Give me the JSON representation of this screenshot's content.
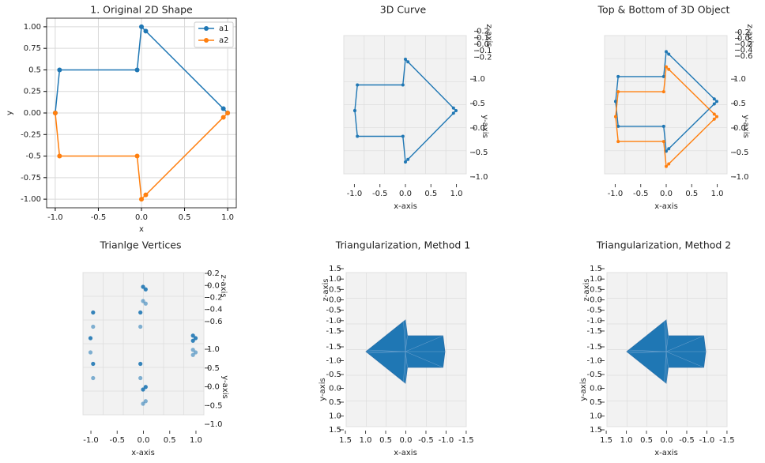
{
  "chart_data": [
    {
      "type": "line",
      "title": "1. Original 2D Shape",
      "x_label": "x",
      "y_label": "y",
      "x": [
        -1,
        -0.95,
        -0.05,
        0,
        0.05,
        0.95,
        1
      ],
      "series": [
        {
          "name": "a1",
          "color": "#1f77b4",
          "values": [
            0,
            0.5,
            0.5,
            1,
            0.95,
            0.05,
            0
          ]
        },
        {
          "name": "a2",
          "color": "#ff7f0e",
          "values": [
            0,
            -0.5,
            -0.5,
            -1,
            -0.95,
            -0.05,
            0
          ]
        }
      ],
      "xlim": [
        -1.1,
        1.1
      ],
      "ylim": [
        -1.1,
        1.1
      ],
      "xticks": [
        {
          "value": -1,
          "label": "-1.0"
        },
        -0.5,
        {
          "value": 0,
          "label": "0.0"
        },
        0.5,
        {
          "value": 1,
          "label": "1.0"
        }
      ],
      "yticks": [
        {
          "value": -1,
          "label": "-1.00"
        },
        -0.75,
        -0.5,
        -0.25,
        {
          "value": 0,
          "label": "0.00"
        },
        0.25,
        0.5,
        0.75,
        {
          "value": 1,
          "label": "1.00"
        }
      ],
      "grid": true,
      "legend": "upper right"
    },
    {
      "type": "line3d",
      "title": "3D Curve",
      "x_label": "x-axis",
      "y_label": "y-axis",
      "z_label": "z-axis",
      "series": [
        {
          "color": "#1f77b4",
          "z": 0,
          "x": [
            -1,
            -0.95,
            -0.05,
            0,
            0.05,
            0.95,
            1,
            0.95,
            0.05,
            0,
            -0.05,
            -0.95,
            -1
          ],
          "y": [
            0,
            0.5,
            0.5,
            1,
            0.95,
            0.05,
            0,
            -0.05,
            -0.95,
            -1,
            -0.5,
            -0.5,
            0
          ]
        }
      ],
      "xlim": [
        -1.1,
        1.1
      ],
      "ylim": [
        -1.1,
        1.1
      ],
      "zlim": [
        -0.22,
        0.22
      ],
      "xticks": [
        {
          "value": -1,
          "label": "-1.0"
        },
        -0.5,
        {
          "value": 0,
          "label": "0.0"
        },
        0.5,
        {
          "value": 1,
          "label": "1.0"
        }
      ],
      "yticks": [
        {
          "value": -1,
          "label": "-1.0"
        },
        -0.5,
        {
          "value": 0,
          "label": "0.0"
        },
        0.5,
        {
          "value": 1,
          "label": "1.0"
        }
      ],
      "zticks": [
        -0.2,
        -0.1,
        {
          "value": 0,
          "label": "0.0"
        },
        0.1,
        0.2
      ]
    },
    {
      "type": "line3d",
      "title": "Top & Bottom of 3D Object",
      "x_label": "x-axis",
      "y_label": "y-axis",
      "z_label": "z-axis",
      "series": [
        {
          "color": "#1f77b4",
          "z": 0.2,
          "x": [
            -1,
            -0.95,
            -0.05,
            0,
            0.05,
            0.95,
            1,
            0.95,
            0.05,
            0,
            -0.05,
            -0.95,
            -1
          ],
          "y": [
            0,
            0.5,
            0.5,
            1,
            0.95,
            0.05,
            0,
            -0.05,
            -0.95,
            -1,
            -0.5,
            -0.5,
            0
          ]
        },
        {
          "color": "#ff7f0e",
          "z": -0.2,
          "x": [
            -1,
            -0.95,
            -0.05,
            0,
            0.05,
            0.95,
            1,
            0.95,
            0.05,
            0,
            -0.05,
            -0.95,
            -1
          ],
          "y": [
            0,
            0.5,
            0.5,
            1,
            0.95,
            0.05,
            0,
            -0.05,
            -0.95,
            -1,
            -0.5,
            -0.5,
            0
          ]
        }
      ],
      "xlim": [
        -1.1,
        1.1
      ],
      "ylim": [
        -1.1,
        1.1
      ],
      "zlim": [
        -0.7,
        0.25
      ],
      "xticks": [
        {
          "value": -1,
          "label": "-1.0"
        },
        -0.5,
        {
          "value": 0,
          "label": "0.0"
        },
        0.5,
        {
          "value": 1,
          "label": "1.0"
        }
      ],
      "yticks": [
        {
          "value": -1,
          "label": "-1.0"
        },
        -0.5,
        {
          "value": 0,
          "label": "0.0"
        },
        0.5,
        {
          "value": 1,
          "label": "1.0"
        }
      ],
      "zticks": [
        -0.6,
        -0.4,
        -0.2,
        {
          "value": 0,
          "label": "0.0"
        },
        0.2
      ]
    },
    {
      "type": "scatter3d",
      "title": "Trianlge Vertices",
      "x_label": "x-axis",
      "y_label": "y-axis",
      "z_label": "z-axis",
      "series": [
        {
          "color": "#1f77b4",
          "z": 0.2,
          "x": [
            -1,
            -0.95,
            -0.05,
            0,
            0.05,
            0.95,
            1,
            0.95,
            0.05,
            0,
            -0.05,
            -0.95
          ],
          "y": [
            0,
            0.5,
            0.5,
            1,
            0.95,
            0.05,
            0,
            -0.05,
            -0.95,
            -1,
            -0.5,
            -0.5
          ]
        },
        {
          "color": "#1f77b4",
          "z": -0.2,
          "x": [
            -1,
            -0.95,
            -0.05,
            0,
            0.05,
            0.95,
            1,
            0.95,
            0.05,
            0,
            -0.05,
            -0.95
          ],
          "y": [
            0,
            0.5,
            0.5,
            1,
            0.95,
            0.05,
            0,
            -0.05,
            -0.95,
            -1,
            -0.5,
            -0.5
          ]
        }
      ],
      "xlim": [
        -1.1,
        1.1
      ],
      "ylim": [
        -1.1,
        1.1
      ],
      "zlim": [
        -0.7,
        0.3
      ],
      "xticks": [
        {
          "value": -1,
          "label": "-1.0"
        },
        -0.5,
        {
          "value": 0,
          "label": "0.0"
        },
        0.5,
        {
          "value": 1,
          "label": "1.0"
        }
      ],
      "yticks": [
        {
          "value": -1,
          "label": "-1.0"
        },
        -0.5,
        {
          "value": 0,
          "label": "0.0"
        },
        0.5,
        {
          "value": 1,
          "label": "1.0"
        }
      ],
      "zticks": [
        -0.6,
        -0.4,
        -0.2,
        {
          "value": 0,
          "label": "0.0"
        },
        0.2
      ]
    },
    {
      "type": "surface3d",
      "title": "Triangularization, Method 1",
      "x_label": "x-axis",
      "y_label": "y-axis",
      "z_label": "z-axis",
      "series": [
        {
          "color": "#1f77b4",
          "z": 0,
          "x": [
            -1,
            -0.95,
            -0.05,
            0,
            0.05,
            0.95,
            1,
            0.95,
            0.05,
            0,
            -0.05,
            -0.95
          ],
          "y": [
            0,
            0.5,
            0.5,
            1,
            0.95,
            0.05,
            0,
            -0.05,
            -0.95,
            -1,
            -0.5,
            -0.5
          ]
        }
      ],
      "xlim": [
        -1.6,
        1.6
      ],
      "ylim": [
        -1.6,
        1.6
      ],
      "zlim": [
        -1.6,
        1.6
      ],
      "xticks": [
        -1.5,
        {
          "value": -1,
          "label": "-1.0"
        },
        -0.5,
        {
          "value": 0,
          "label": "0.0"
        },
        0.5,
        {
          "value": 1,
          "label": "1.0"
        },
        1.5
      ],
      "yticks": [
        -1.5,
        {
          "value": -1,
          "label": "-1.0"
        },
        -0.5,
        {
          "value": 0,
          "label": "0.0"
        },
        0.5,
        {
          "value": 1,
          "label": "1.0"
        },
        1.5
      ],
      "zticks": [
        -1.5,
        {
          "value": -1,
          "label": "-1.0"
        },
        -0.5,
        {
          "value": 0,
          "label": "0.0"
        },
        0.5,
        {
          "value": 1,
          "label": "1.0"
        },
        1.5
      ]
    },
    {
      "type": "surface3d",
      "title": "Triangularization, Method 2",
      "x_label": "x-axis",
      "y_label": "y-axis",
      "z_label": "z-axis",
      "series": [
        {
          "color": "#1f77b4",
          "z": 0,
          "x": [
            -1,
            -0.95,
            -0.05,
            0,
            0.05,
            0.95,
            1,
            0.95,
            0.05,
            0,
            -0.05,
            -0.95
          ],
          "y": [
            0,
            0.5,
            0.5,
            1,
            0.95,
            0.05,
            0,
            -0.05,
            -0.95,
            -1,
            -0.5,
            -0.5
          ]
        }
      ],
      "xlim": [
        -1.6,
        1.6
      ],
      "ylim": [
        -1.6,
        1.6
      ],
      "zlim": [
        -1.6,
        1.6
      ],
      "xticks": [
        -1.5,
        {
          "value": -1,
          "label": "-1.0"
        },
        -0.5,
        {
          "value": 0,
          "label": "0.0"
        },
        0.5,
        {
          "value": 1,
          "label": "1.0"
        },
        1.5
      ],
      "yticks": [
        -1.5,
        {
          "value": -1,
          "label": "-1.0"
        },
        -0.5,
        {
          "value": 0,
          "label": "0.0"
        },
        0.5,
        {
          "value": 1,
          "label": "1.0"
        },
        1.5
      ],
      "zticks": [
        -1.5,
        {
          "value": -1,
          "label": "-1.0"
        },
        -0.5,
        {
          "value": 0,
          "label": "0.0"
        },
        0.5,
        {
          "value": 1,
          "label": "1.0"
        },
        1.5
      ]
    }
  ]
}
